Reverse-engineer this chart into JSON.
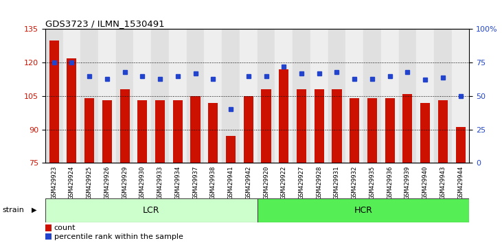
{
  "title": "GDS3723 / ILMN_1530491",
  "categories": [
    "GSM429923",
    "GSM429924",
    "GSM429925",
    "GSM429926",
    "GSM429929",
    "GSM429930",
    "GSM429933",
    "GSM429934",
    "GSM429937",
    "GSM429938",
    "GSM429941",
    "GSM429942",
    "GSM429920",
    "GSM429922",
    "GSM429927",
    "GSM429928",
    "GSM429931",
    "GSM429932",
    "GSM429935",
    "GSM429936",
    "GSM429939",
    "GSM429940",
    "GSM429943",
    "GSM429944"
  ],
  "bar_values": [
    130,
    122,
    104,
    103,
    108,
    103,
    103,
    103,
    105,
    102,
    87,
    105,
    108,
    117,
    108,
    108,
    108,
    104,
    104,
    104,
    106,
    102,
    103,
    91
  ],
  "percentile_values": [
    75,
    75,
    65,
    63,
    68,
    65,
    63,
    65,
    67,
    63,
    40,
    65,
    65,
    72,
    67,
    67,
    68,
    63,
    63,
    65,
    68,
    62,
    64,
    50
  ],
  "lcr_count": 12,
  "lcr_color": "#ccffcc",
  "hcr_color": "#55ee55",
  "bar_color": "#cc1100",
  "dot_color": "#2244cc",
  "bar_bottom": 75,
  "ylim_left": [
    75,
    135
  ],
  "ylim_right": [
    0,
    100
  ],
  "yticks_left": [
    75,
    90,
    105,
    120,
    135
  ],
  "yticks_right": [
    0,
    25,
    50,
    75,
    100
  ],
  "ytick_labels_right": [
    "0",
    "25",
    "50",
    "75",
    "100%"
  ],
  "grid_values": [
    90,
    105,
    120
  ],
  "legend_count": "count",
  "legend_pct": "percentile rank within the sample",
  "strain_label": "strain",
  "col_even": "#e0e0e0",
  "col_odd": "#eeeeee",
  "plot_bg": "#ffffff"
}
